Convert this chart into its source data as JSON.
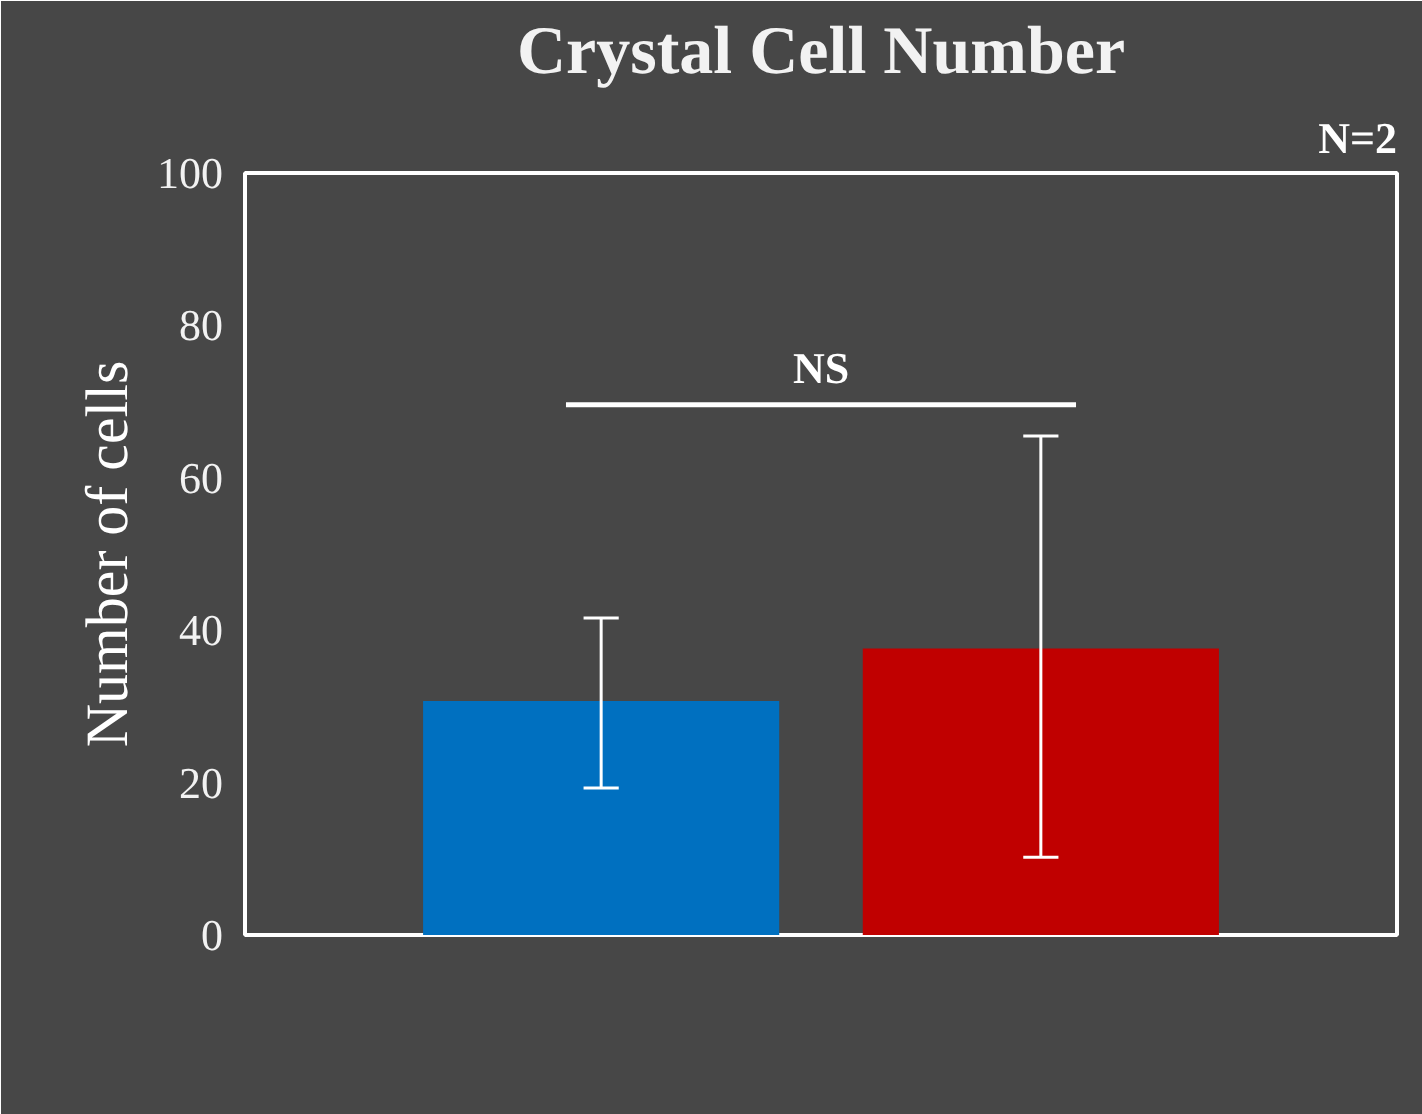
{
  "chart_data": {
    "type": "bar",
    "title": "Crystal Cell Number",
    "ylabel": "Number of cells",
    "categories": [
      null,
      null
    ],
    "values": [
      30.7,
      37.6
    ],
    "colors": [
      "#0070c0",
      "#c00000"
    ],
    "errors": [
      [
        19.3,
        41.6
      ],
      [
        10.2,
        65.5
      ]
    ],
    "ylim": [
      0,
      100
    ],
    "yticks": [
      0,
      20,
      40,
      60,
      80,
      100
    ],
    "grid": false,
    "ref_lines": [
      {
        "axis": "y",
        "value": 69.6,
        "label": "NS",
        "color": "#ffffff"
      }
    ],
    "annotations": [
      "N=2"
    ]
  }
}
